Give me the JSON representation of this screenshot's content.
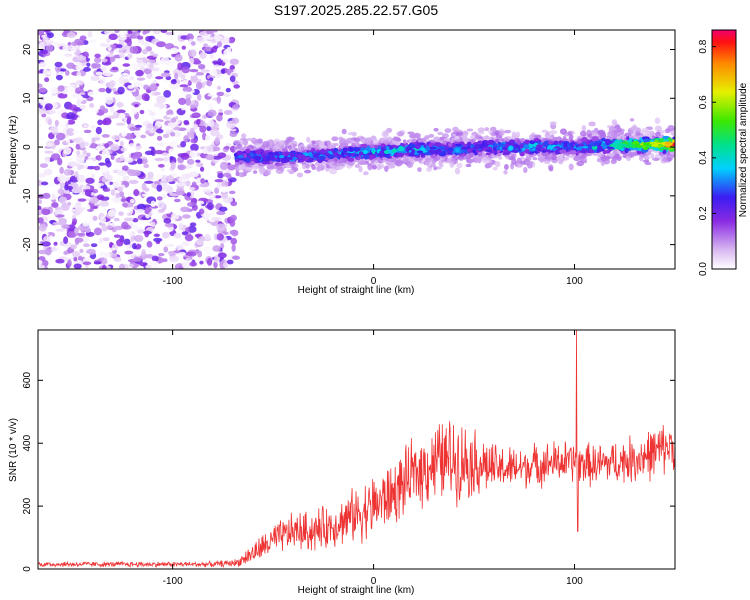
{
  "title": "S197.2025.285.22.57.G05",
  "chart_data": [
    {
      "type": "heatmap",
      "title": "S197.2025.285.22.57.G05",
      "xlabel": "Height of straight line (km)",
      "ylabel": "Frequency (Hz)",
      "xlim": [
        -167,
        150
      ],
      "ylim": [
        -25,
        24
      ],
      "xticks": [
        -100,
        0,
        100
      ],
      "yticks": [
        -20,
        -10,
        0,
        10,
        20
      ],
      "colorbar": {
        "label": "Normalized spectral amplitude",
        "range": [
          0.0,
          0.86
        ],
        "ticks": [
          0.0,
          0.2,
          0.4,
          0.6,
          0.8
        ],
        "tick_labels": [
          "0.0",
          "0.2",
          "0.4",
          "0.6",
          "0.8"
        ]
      },
      "ridge": {
        "description": "signal ridge along frequency offset",
        "x": [
          -68,
          -60,
          -40,
          -20,
          0,
          20,
          40,
          60,
          80,
          100,
          120,
          140,
          150
        ],
        "freq": [
          -2.0,
          -2.0,
          -2.0,
          -1.5,
          -1.0,
          -0.5,
          -0.5,
          0.0,
          0.0,
          0.0,
          0.5,
          0.5,
          0.5
        ],
        "amplitude": [
          0.25,
          0.3,
          0.3,
          0.3,
          0.35,
          0.35,
          0.3,
          0.3,
          0.35,
          0.3,
          0.45,
          0.6,
          0.8
        ]
      },
      "noise_region": {
        "x_range": [
          -167,
          -68
        ],
        "amplitude": 0.15
      }
    },
    {
      "type": "line",
      "xlabel": "Height of straight line (km)",
      "ylabel": "SNR (10 * v/v)",
      "xlim": [
        -167,
        150
      ],
      "ylim": [
        0,
        760
      ],
      "xticks": [
        -100,
        0,
        100
      ],
      "yticks": [
        0,
        200,
        400,
        600
      ],
      "series": [
        {
          "name": "SNR",
          "color": "#ee3333",
          "x": [
            -167,
            -120,
            -80,
            -68,
            -60,
            -50,
            -40,
            -30,
            -20,
            -10,
            0,
            10,
            20,
            30,
            40,
            50,
            60,
            70,
            80,
            90,
            100,
            110,
            120,
            130,
            140,
            150
          ],
          "y": [
            15,
            15,
            15,
            20,
            50,
            90,
            120,
            120,
            140,
            170,
            200,
            240,
            300,
            340,
            350,
            340,
            320,
            320,
            330,
            340,
            340,
            330,
            340,
            350,
            370,
            400
          ],
          "spread": [
            10,
            10,
            10,
            15,
            40,
            60,
            70,
            80,
            80,
            100,
            120,
            120,
            130,
            150,
            160,
            130,
            90,
            80,
            80,
            80,
            80,
            80,
            80,
            90,
            100,
            90
          ],
          "spike": {
            "x": 101,
            "y": 760
          },
          "dip": {
            "x": 101,
            "y": 120
          }
        }
      ]
    }
  ]
}
